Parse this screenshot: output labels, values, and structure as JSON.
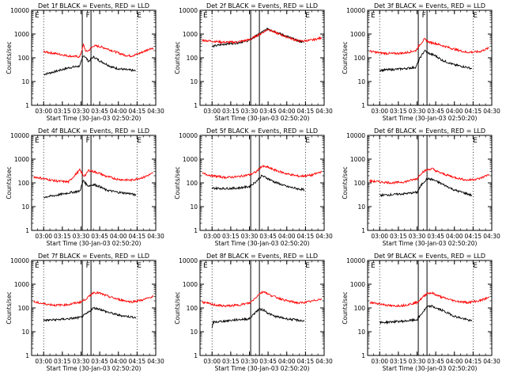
{
  "figure": {
    "x_ticks": [
      "03:00",
      "03:15",
      "03:30",
      "03:45",
      "04:00",
      "04:15",
      "04:30"
    ],
    "y_ticks": [
      "1",
      "10",
      "100",
      "1000",
      "10000"
    ],
    "xlabel": "Start Time (30-Jan-03 02:50:20)",
    "ylabel": "Counts/sec",
    "colors": {
      "events": "#000000",
      "lld": "#ff0000",
      "axis": "#000000"
    }
  },
  "chart_data": [
    {
      "type": "line",
      "title": "Det 1f BLACK = Events, RED = LLD",
      "markers": [
        "E",
        "F",
        "E"
      ],
      "ylabel": "Counts/sec",
      "xlabel": "Start Time (30-Jan-03 02:50:20)",
      "xlim": [
        "02:50:20",
        "04:30"
      ],
      "ylog": true,
      "ylim": [
        1,
        10000
      ],
      "series": [
        {
          "name": "Events",
          "x": [
            "03:00",
            "03:10",
            "03:20",
            "03:29",
            "03:32",
            "03:34",
            "03:36",
            "03:40",
            "03:45",
            "03:50",
            "03:55",
            "04:00",
            "04:05",
            "04:10",
            "04:14"
          ],
          "values": [
            20,
            27,
            38,
            45,
            130,
            100,
            70,
            110,
            75,
            55,
            40,
            35,
            32,
            30,
            28
          ]
        },
        {
          "name": "LLD",
          "x": [
            "03:00",
            "03:10",
            "03:20",
            "03:29",
            "03:32",
            "03:34",
            "03:36",
            "03:40",
            "03:45",
            "03:50",
            "03:55",
            "04:00",
            "04:05",
            "04:10",
            "04:15",
            "04:20",
            "04:25",
            "04:28"
          ],
          "values": [
            180,
            150,
            120,
            110,
            350,
            180,
            200,
            320,
            300,
            250,
            200,
            160,
            130,
            120,
            140,
            180,
            240,
            260
          ]
        }
      ]
    },
    {
      "type": "line",
      "title": "Det 2f BLACK = Events, RED = LLD",
      "markers": [
        "E",
        "",
        "E"
      ],
      "ylabel": "Counts/sec",
      "xlabel": "Start Time (30-Jan-03 02:50:20)",
      "xlim": [
        "02:50:20",
        "04:30"
      ],
      "ylog": true,
      "ylim": [
        1,
        10000
      ],
      "series": [
        {
          "name": "Events",
          "x": [
            "03:00",
            "03:10",
            "03:20",
            "03:30",
            "03:40",
            "03:45",
            "03:50",
            "04:00",
            "04:10",
            "04:14"
          ],
          "values": [
            300,
            380,
            420,
            550,
            1200,
            1700,
            1300,
            800,
            500,
            450
          ]
        },
        {
          "name": "LLD",
          "x": [
            "02:52",
            "03:00",
            "03:10",
            "03:20",
            "03:30",
            "03:40",
            "03:45",
            "03:50",
            "04:00",
            "04:10",
            "04:20",
            "04:28"
          ],
          "values": [
            550,
            500,
            450,
            460,
            580,
            1100,
            1600,
            1200,
            750,
            500,
            550,
            700
          ]
        }
      ]
    },
    {
      "type": "line",
      "title": "Det 3f BLACK = Events, RED = LLD",
      "markers": [
        "E",
        "F",
        "E"
      ],
      "ylabel": "Counts/sec",
      "xlabel": "Start Time (30-Jan-03 02:50:20)",
      "xlim": [
        "02:50:20",
        "04:30"
      ],
      "ylog": true,
      "ylim": [
        1,
        10000
      ],
      "series": [
        {
          "name": "Events",
          "x": [
            "03:00",
            "03:10",
            "03:20",
            "03:29",
            "03:32",
            "03:36",
            "03:40",
            "03:45",
            "03:50",
            "04:00",
            "04:10",
            "04:14"
          ],
          "values": [
            30,
            32,
            35,
            40,
            90,
            200,
            150,
            120,
            80,
            50,
            40,
            35
          ]
        },
        {
          "name": "LLD",
          "x": [
            "02:52",
            "03:00",
            "03:10",
            "03:20",
            "03:29",
            "03:32",
            "03:36",
            "03:40",
            "03:45",
            "03:50",
            "04:00",
            "04:10",
            "04:20",
            "04:28"
          ],
          "values": [
            190,
            160,
            150,
            160,
            200,
            350,
            600,
            450,
            400,
            330,
            230,
            170,
            180,
            260
          ]
        }
      ]
    },
    {
      "type": "line",
      "title": "Det 4f BLACK = Events, RED = LLD",
      "markers": [
        "E",
        "F",
        "E"
      ],
      "ylabel": "Counts/sec",
      "xlabel": "Start Time (30-Jan-03 02:50:20)",
      "xlim": [
        "02:50:20",
        "04:30"
      ],
      "ylog": true,
      "ylim": [
        1,
        10000
      ],
      "series": [
        {
          "name": "Events",
          "x": [
            "03:00",
            "03:10",
            "03:20",
            "03:29",
            "03:32",
            "03:34",
            "03:36",
            "03:40",
            "03:45",
            "03:50",
            "04:00",
            "04:10",
            "04:14"
          ],
          "values": [
            25,
            30,
            38,
            45,
            130,
            90,
            75,
            85,
            70,
            50,
            40,
            35,
            30
          ]
        },
        {
          "name": "LLD",
          "x": [
            "02:52",
            "03:00",
            "03:10",
            "03:20",
            "03:29",
            "03:32",
            "03:34",
            "03:36",
            "03:40",
            "03:45",
            "03:50",
            "04:00",
            "04:10",
            "04:20",
            "04:28"
          ],
          "values": [
            180,
            150,
            120,
            110,
            350,
            200,
            220,
            340,
            300,
            250,
            190,
            140,
            130,
            170,
            260
          ]
        }
      ]
    },
    {
      "type": "line",
      "title": "Det 5f BLACK = Events, RED = LLD",
      "markers": [
        "",
        "",
        "E"
      ],
      "ylabel": "Counts/sec",
      "xlabel": "Start Time (30-Jan-03 02:50:20)",
      "xlim": [
        "02:50:20",
        "04:30"
      ],
      "ylog": true,
      "ylim": [
        1,
        10000
      ],
      "series": [
        {
          "name": "Events",
          "x": [
            "03:00",
            "03:10",
            "03:20",
            "03:30",
            "03:35",
            "03:40",
            "03:45",
            "03:50",
            "04:00",
            "04:10",
            "04:14"
          ],
          "values": [
            60,
            58,
            60,
            70,
            110,
            200,
            150,
            110,
            70,
            55,
            52
          ]
        },
        {
          "name": "LLD",
          "x": [
            "02:52",
            "03:00",
            "03:10",
            "03:20",
            "03:30",
            "03:35",
            "03:40",
            "03:45",
            "03:50",
            "04:00",
            "04:10",
            "04:20",
            "04:28"
          ],
          "values": [
            250,
            200,
            170,
            180,
            220,
            280,
            500,
            450,
            350,
            240,
            190,
            210,
            300
          ]
        }
      ]
    },
    {
      "type": "line",
      "title": "Det 6f BLACK = Events, RED = LLD",
      "markers": [
        "",
        "",
        "E"
      ],
      "ylabel": "Counts/sec",
      "xlabel": "Start Time (30-Jan-03 02:50:20)",
      "xlim": [
        "02:50:20",
        "04:30"
      ],
      "ylog": true,
      "ylim": [
        1,
        10000
      ],
      "series": [
        {
          "name": "Events",
          "x": [
            "03:00",
            "03:10",
            "03:20",
            "03:30",
            "03:34",
            "03:38",
            "03:42",
            "03:45",
            "03:50",
            "04:00",
            "04:10",
            "04:14"
          ],
          "values": [
            30,
            32,
            35,
            40,
            90,
            150,
            140,
            120,
            90,
            50,
            35,
            30
          ]
        },
        {
          "name": "LLD",
          "x": [
            "02:52",
            "03:00",
            "03:10",
            "03:20",
            "03:30",
            "03:34",
            "03:38",
            "03:42",
            "03:45",
            "03:50",
            "04:00",
            "04:10",
            "04:20",
            "04:28"
          ],
          "values": [
            120,
            110,
            100,
            110,
            150,
            280,
            350,
            400,
            320,
            250,
            170,
            130,
            150,
            230
          ]
        }
      ]
    },
    {
      "type": "line",
      "title": "Det 7f BLACK = Events, RED = LLD",
      "markers": [
        "E",
        "F",
        "E"
      ],
      "ylabel": "Counts/sec",
      "xlabel": "Start Time (30-Jan-03 02:50:20)",
      "xlim": [
        "02:50:20",
        "04:30"
      ],
      "ylog": true,
      "ylim": [
        1,
        10000
      ],
      "series": [
        {
          "name": "Events",
          "x": [
            "03:00",
            "03:10",
            "03:20",
            "03:30",
            "03:35",
            "03:40",
            "03:45",
            "03:50",
            "04:00",
            "04:10",
            "04:14"
          ],
          "values": [
            30,
            32,
            35,
            40,
            60,
            100,
            90,
            70,
            50,
            42,
            40
          ]
        },
        {
          "name": "LLD",
          "x": [
            "02:52",
            "03:00",
            "03:10",
            "03:20",
            "03:30",
            "03:35",
            "03:40",
            "03:45",
            "03:50",
            "04:00",
            "04:10",
            "04:20",
            "04:28"
          ],
          "values": [
            180,
            150,
            130,
            140,
            180,
            260,
            450,
            420,
            330,
            230,
            180,
            220,
            310
          ]
        }
      ]
    },
    {
      "type": "line",
      "title": "Det 8f BLACK = Events, RED = LLD",
      "markers": [
        "E",
        "",
        "E"
      ],
      "ylabel": "Counts/sec",
      "xlabel": "Start Time (30-Jan-03 02:50:20)",
      "xlim": [
        "02:50:20",
        "04:30"
      ],
      "ylog": true,
      "ylim": [
        1,
        10000
      ],
      "series": [
        {
          "name": "Events",
          "x": [
            "03:00",
            "03:01",
            "03:10",
            "03:20",
            "03:30",
            "03:34",
            "03:38",
            "03:42",
            "03:45",
            "03:50",
            "04:00",
            "04:10",
            "04:14"
          ],
          "values": [
            14,
            25,
            28,
            32,
            35,
            60,
            90,
            80,
            60,
            45,
            35,
            30,
            28
          ]
        },
        {
          "name": "LLD",
          "x": [
            "02:52",
            "03:00",
            "03:10",
            "03:20",
            "03:30",
            "03:34",
            "03:38",
            "03:42",
            "03:45",
            "03:50",
            "04:00",
            "04:10",
            "04:20",
            "04:28"
          ],
          "values": [
            180,
            140,
            120,
            130,
            160,
            240,
            400,
            500,
            380,
            300,
            200,
            160,
            190,
            250
          ]
        }
      ]
    },
    {
      "type": "line",
      "title": "Det 9f BLACK = Events, RED = LLD",
      "markers": [
        "E",
        "",
        "E"
      ],
      "ylabel": "Counts/sec",
      "xlabel": "Start Time (30-Jan-03 02:50:20)",
      "xlim": [
        "02:50:20",
        "04:30"
      ],
      "ylog": true,
      "ylim": [
        1,
        10000
      ],
      "series": [
        {
          "name": "Events",
          "x": [
            "03:00",
            "03:10",
            "03:20",
            "03:30",
            "03:34",
            "03:38",
            "03:42",
            "03:45",
            "03:50",
            "04:00",
            "04:10",
            "04:14"
          ],
          "values": [
            24,
            26,
            28,
            32,
            60,
            110,
            120,
            100,
            80,
            45,
            32,
            28
          ]
        },
        {
          "name": "LLD",
          "x": [
            "02:52",
            "03:00",
            "03:10",
            "03:20",
            "03:30",
            "03:34",
            "03:38",
            "03:42",
            "03:45",
            "03:50",
            "04:00",
            "04:10",
            "04:20",
            "04:28"
          ],
          "values": [
            170,
            150,
            120,
            130,
            170,
            260,
            420,
            430,
            360,
            280,
            200,
            170,
            200,
            280
          ]
        }
      ]
    }
  ]
}
